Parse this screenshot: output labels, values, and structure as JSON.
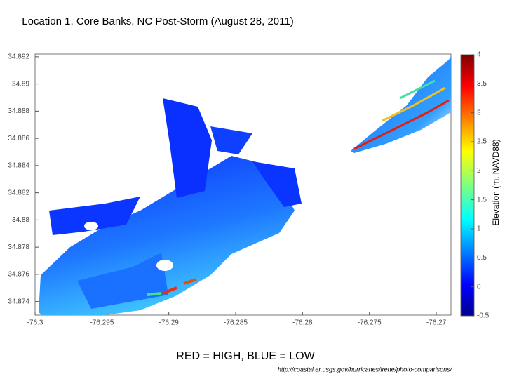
{
  "chart_data": {
    "type": "heatmap",
    "title": "Location 1, Core Banks, NC Post-Storm (August 28, 2011)",
    "xlim": [
      -76.3,
      -76.2689
    ],
    "xticks": [
      -76.3,
      -76.295,
      -76.29,
      -76.285,
      -76.28,
      -76.275,
      -76.27
    ],
    "ylim": [
      34.873,
      34.8922
    ],
    "yticks": [
      34.892,
      34.89,
      34.888,
      34.886,
      34.884,
      34.882,
      34.88,
      34.878,
      34.876,
      34.874
    ],
    "colorbar": {
      "label": "Elevation (m, NAVD88)",
      "lim": [
        -0.5,
        4
      ],
      "ticks": [
        4,
        3.5,
        3,
        2.5,
        2,
        1.5,
        1,
        0.5,
        0,
        -0.5
      ]
    },
    "caption": "RED = HIGH, BLUE = LOW",
    "source": "http://coastal.er.usgs.gov/hurricanes/irene/photo-comparisons/"
  }
}
